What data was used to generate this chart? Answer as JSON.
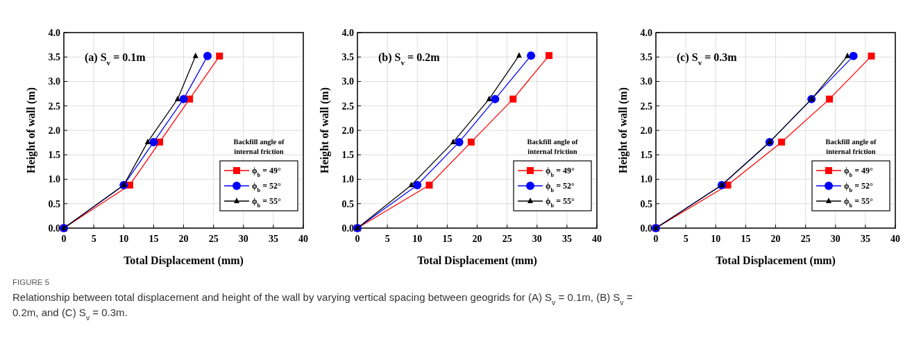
{
  "chart_data": [
    {
      "type": "line",
      "xlabel": "Total Displacement (mm)",
      "ylabel": "Height of wall (m)",
      "legend_title": "Backfill angle of internal friction",
      "legend": "bottom right",
      "grid": true,
      "line_style": "solid",
      "xlim": [
        0,
        40
      ],
      "xticks": [
        0,
        5,
        10,
        15,
        20,
        25,
        30,
        35,
        40
      ],
      "ylim": [
        0,
        4
      ],
      "yticks": [
        {
          "value": 0,
          "label": "0.0"
        },
        {
          "value": 0.5,
          "label": "0.5"
        },
        {
          "value": 1,
          "label": "1.0"
        },
        {
          "value": 1.5,
          "label": "1.5"
        },
        {
          "value": 2,
          "label": "2.0"
        },
        {
          "value": 2.5,
          "label": "2.5"
        },
        {
          "value": 3,
          "label": "3.0"
        },
        {
          "value": 3.5,
          "label": "3.5"
        },
        {
          "value": 4,
          "label": "4.0"
        }
      ],
      "annotations": [
        "(a)  S$_{v}$ = 0.1m",
        "FIGURE 5",
        "Relationship between total displacement and height of the wall by varying vertical spacing between geogrids for (A) S$_{v}$ = 0.1m, (B) S$_{v}$ = 0.2m, and (C) S$_{v}$ = 0.3m."
      ],
      "series": [
        {
          "name": "ϕ$_{b}$ = 49°",
          "color": "#ff0000",
          "marker": "square",
          "x": [
            0,
            11,
            16,
            21,
            26
          ],
          "values": [
            0,
            0.88,
            1.76,
            2.64,
            3.52
          ]
        },
        {
          "name": "ϕ$_{b}$ = 52°",
          "color": "#0000ff",
          "marker": "circle",
          "x": [
            0,
            10,
            15,
            20,
            24
          ],
          "values": [
            0,
            0.88,
            1.76,
            2.64,
            3.52
          ]
        },
        {
          "name": "ϕ$_{b}$ = 55°",
          "color": "#000000",
          "marker": "triangle",
          "x": [
            0,
            10,
            14,
            19,
            22
          ],
          "values": [
            0,
            0.88,
            1.76,
            2.64,
            3.52
          ]
        }
      ]
    },
    {
      "type": "line",
      "xlabel": "Total Displacement (mm)",
      "ylabel": "Height of wall (m)",
      "legend_title": "Backfill angle of internal friction",
      "legend": "bottom right",
      "grid": true,
      "line_style": "solid",
      "xlim": [
        0,
        40
      ],
      "xticks": [
        0,
        5,
        10,
        15,
        20,
        25,
        30,
        35,
        40
      ],
      "ylim": [
        0,
        4
      ],
      "yticks": [
        {
          "value": 0,
          "label": "0.0"
        },
        {
          "value": 0.5,
          "label": "0.5"
        },
        {
          "value": 1,
          "label": "1.0"
        },
        {
          "value": 1.5,
          "label": "1.5"
        },
        {
          "value": 2,
          "label": "2.0"
        },
        {
          "value": 2.5,
          "label": "2.5"
        },
        {
          "value": 3,
          "label": "3.0"
        },
        {
          "value": 3.5,
          "label": "3.5"
        },
        {
          "value": 4,
          "label": "4.0"
        }
      ],
      "annotations": [
        "(b)  S$_{v}$ = 0.2m"
      ],
      "series": [
        {
          "name": "ϕ$_{b}$ = 49°",
          "color": "#ff0000",
          "marker": "square",
          "x": [
            0,
            12,
            19,
            26,
            32
          ],
          "values": [
            0,
            0.88,
            1.76,
            2.64,
            3.53
          ]
        },
        {
          "name": "ϕ$_{b}$ = 52°",
          "color": "#0000ff",
          "marker": "circle",
          "x": [
            0,
            10,
            17,
            23,
            29
          ],
          "values": [
            0,
            0.88,
            1.76,
            2.64,
            3.53
          ]
        },
        {
          "name": "ϕ$_{b}$ = 55°",
          "color": "#000000",
          "marker": "triangle",
          "x": [
            0,
            9,
            16,
            22,
            27
          ],
          "values": [
            0,
            0.88,
            1.76,
            2.64,
            3.53
          ]
        }
      ]
    },
    {
      "type": "line",
      "xlabel": "Total Displacement (mm)",
      "ylabel": "Height of wall (m)",
      "legend_title": "Backfill angle of internal friction",
      "legend": "bottom right",
      "grid": true,
      "line_style": "solid",
      "xlim": [
        0,
        40
      ],
      "xticks": [
        0,
        5,
        10,
        15,
        20,
        25,
        30,
        35,
        40
      ],
      "ylim": [
        0,
        4
      ],
      "yticks": [
        {
          "value": 0,
          "label": "0.0"
        },
        {
          "value": 0.5,
          "label": "0.5"
        },
        {
          "value": 1,
          "label": "1.0"
        },
        {
          "value": 1.5,
          "label": "1.5"
        },
        {
          "value": 2,
          "label": "2.0"
        },
        {
          "value": 2.5,
          "label": "2.5"
        },
        {
          "value": 3,
          "label": "3.0"
        },
        {
          "value": 3.5,
          "label": "3.5"
        },
        {
          "value": 4,
          "label": "4.0"
        }
      ],
      "annotations": [
        "(c)  S$_{v}$ = 0.3m"
      ],
      "series": [
        {
          "name": "ϕ$_{b}$ = 49°",
          "color": "#ff0000",
          "marker": "square",
          "x": [
            0,
            12,
            21,
            29,
            36
          ],
          "values": [
            0,
            0.88,
            1.76,
            2.64,
            3.52
          ]
        },
        {
          "name": "ϕ$_{b}$ = 52°",
          "color": "#0000ff",
          "marker": "circle",
          "x": [
            0,
            11,
            19,
            26,
            33
          ],
          "values": [
            0,
            0.88,
            1.76,
            2.64,
            3.52
          ]
        },
        {
          "name": "ϕ$_{b}$ = 55°",
          "color": "#000000",
          "marker": "triangle",
          "x": [
            0,
            11,
            19,
            26,
            32
          ],
          "values": [
            0,
            0.88,
            1.76,
            2.64,
            3.52
          ]
        }
      ]
    }
  ]
}
